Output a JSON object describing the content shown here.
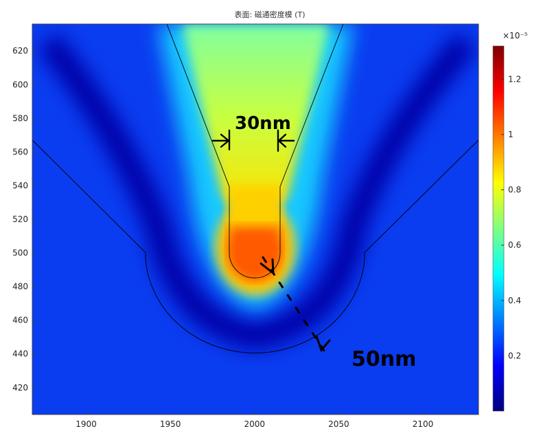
{
  "chart_data": {
    "type": "heatmap",
    "title": "表面: 磁通密度模 (T)",
    "xlim": [
      1868,
      2133
    ],
    "ylim": [
      404,
      636
    ],
    "x_ticks": [
      1900,
      1950,
      2000,
      2050,
      2100
    ],
    "y_ticks": [
      420,
      440,
      460,
      480,
      500,
      520,
      540,
      560,
      580,
      600,
      620
    ],
    "colorbar": {
      "exponent_label": "×10⁻⁵",
      "range": [
        0,
        1.32
      ],
      "ticks": [
        0.2,
        0.4,
        0.6,
        0.8,
        1,
        1.2
      ],
      "colormap": "jet",
      "colors": [
        "#00007f",
        "#0000ff",
        "#007fff",
        "#00ffff",
        "#7fff7f",
        "#ffff00",
        "#ff7f00",
        "#ff0000",
        "#7f0000"
      ]
    },
    "annotations": [
      {
        "text": "30nm"
      },
      {
        "text": "50nm"
      }
    ]
  }
}
